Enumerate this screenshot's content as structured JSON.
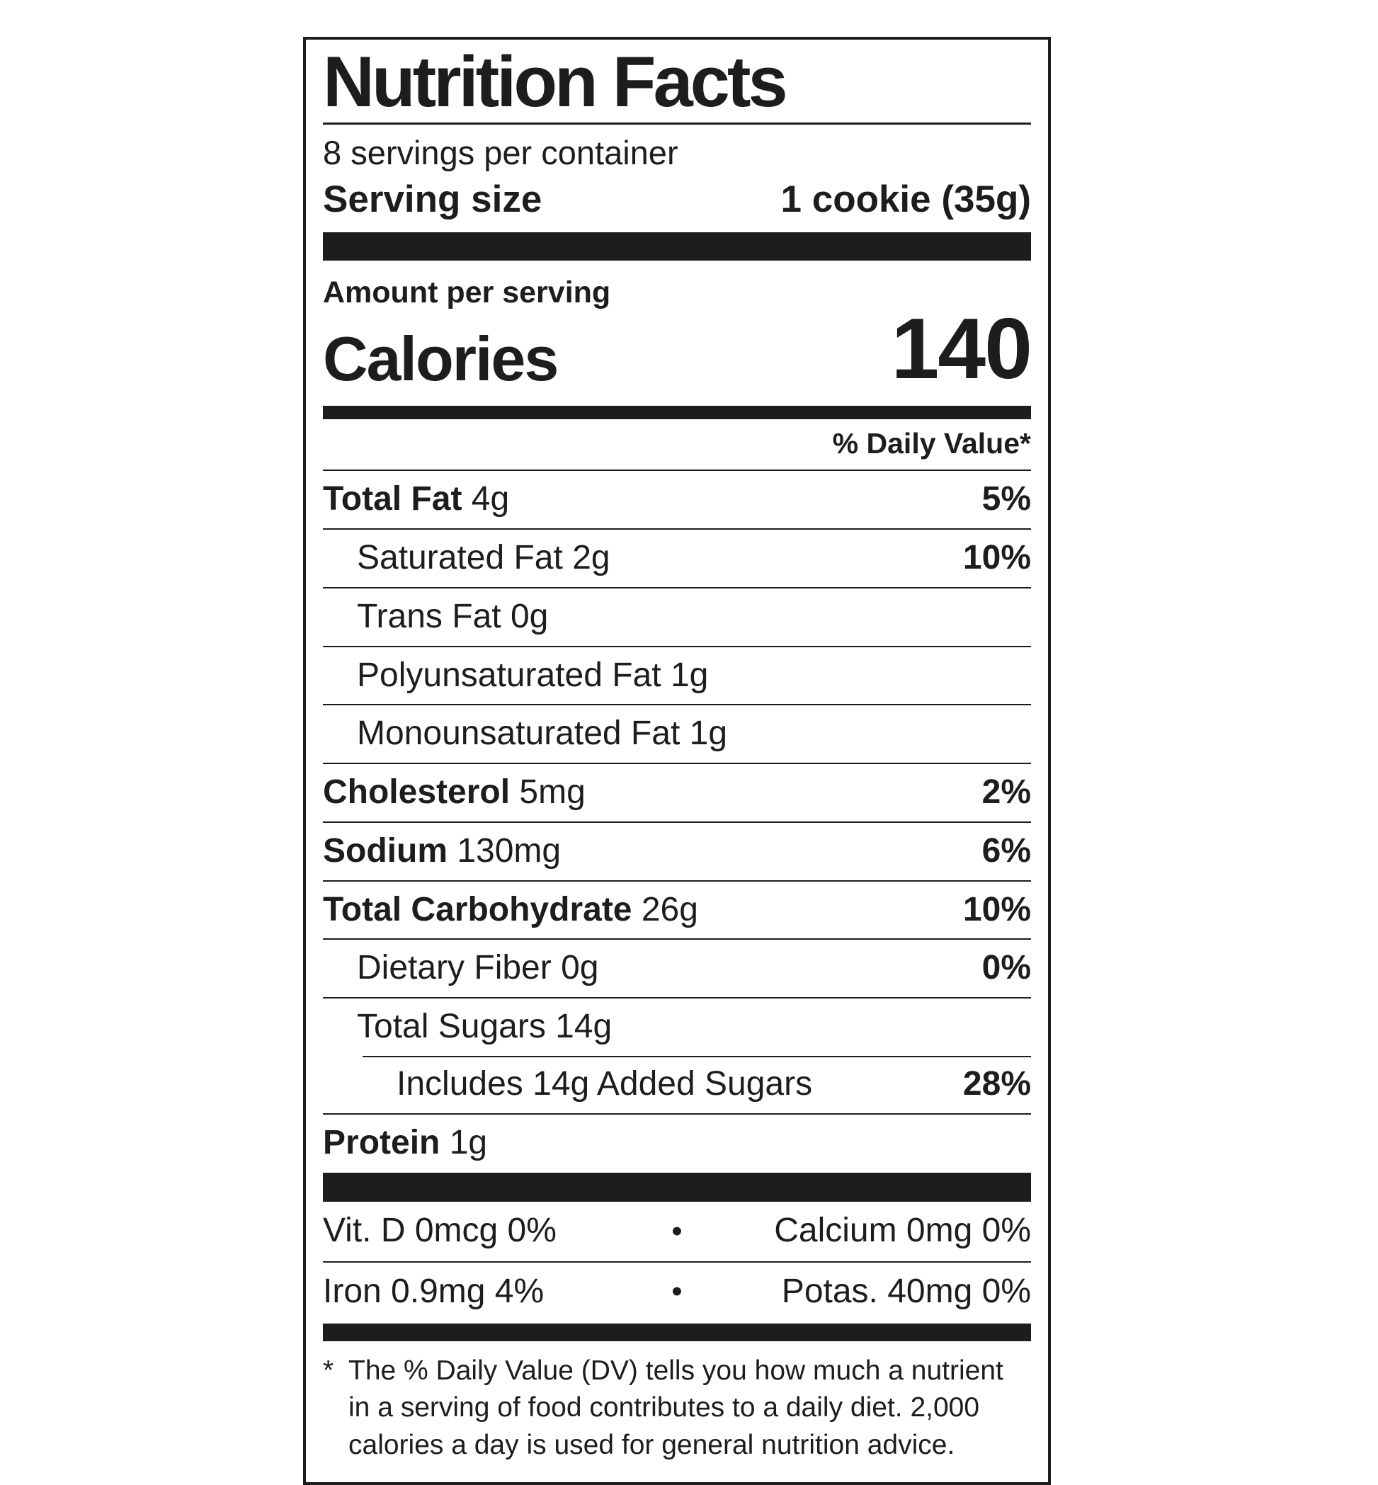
{
  "label": {
    "title": "Nutrition Facts",
    "servings_per_container": "8 servings per container",
    "serving_size_label": "Serving size",
    "serving_size_value": "1 cookie (35g)",
    "amount_per_serving": "Amount per serving",
    "calories_label": "Calories",
    "calories_value": "140",
    "daily_value_header": "% Daily Value*",
    "nutrients": [
      {
        "name": "Total Fat",
        "amount": "4g",
        "dv": "5%"
      },
      {
        "name": "Saturated Fat",
        "amount": "2g",
        "dv": "10%"
      },
      {
        "name": "Trans Fat",
        "amount": "0g",
        "dv": ""
      },
      {
        "name": "Polyunsaturated Fat",
        "amount": "1g",
        "dv": ""
      },
      {
        "name": "Monounsaturated Fat",
        "amount": "1g",
        "dv": ""
      },
      {
        "name": "Cholesterol",
        "amount": "5mg",
        "dv": "2%"
      },
      {
        "name": "Sodium",
        "amount": "130mg",
        "dv": "6%"
      },
      {
        "name": "Total Carbohydrate",
        "amount": "26g",
        "dv": "10%"
      },
      {
        "name": "Dietary Fiber",
        "amount": "0g",
        "dv": "0%"
      },
      {
        "name": "Total Sugars",
        "amount": "14g",
        "dv": ""
      },
      {
        "name": "Includes 14g Added Sugars",
        "amount": "",
        "dv": "28%"
      },
      {
        "name": "Protein",
        "amount": "1g",
        "dv": ""
      }
    ],
    "micronutrients": [
      {
        "left": "Vit. D 0mcg 0%",
        "bullet": "•",
        "right": "Calcium 0mg 0%"
      },
      {
        "left": "Iron 0.9mg 4%",
        "bullet": "•",
        "right": "Potas. 40mg 0%"
      }
    ],
    "footnote_marker": "*",
    "footnote_text": "The % Daily Value (DV) tells you how much a nutrient in a serving of food contributes to a daily diet. 2,000 calories a day is used for general nutrition advice.",
    "colors": {
      "ink": "#1d1d1b",
      "background": "#ffffff"
    }
  }
}
